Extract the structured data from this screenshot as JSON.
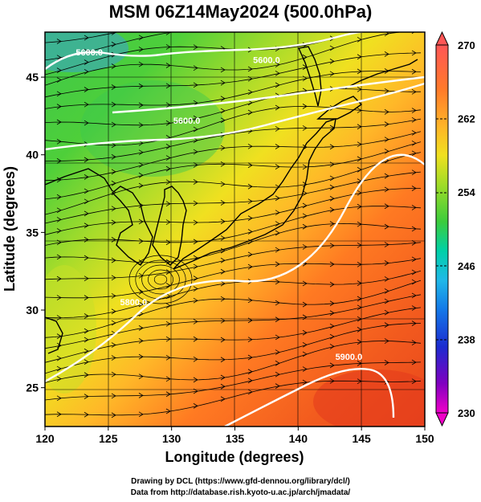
{
  "title": "MSM 06Z14May2024 (500.0hPa)",
  "map": {
    "lon_range": [
      120,
      150
    ],
    "lat_range": [
      22.5,
      47.9
    ],
    "x_ticks": [
      "120",
      "125",
      "130",
      "135",
      "140",
      "145",
      "150"
    ],
    "y_ticks": [
      "25",
      "30",
      "35",
      "40",
      "45"
    ],
    "xlabel": "Longitude (degrees)",
    "ylabel": "Latitude  (degrees)",
    "grid": true,
    "field": "temperature",
    "vectors": "wind streamlines (arrows pointing east-northeast)",
    "contour_labels": [
      {
        "text": "5600.0",
        "lon": 123.5,
        "lat": 46.4
      },
      {
        "text": "5600.0",
        "lon": 137.5,
        "lat": 45.9
      },
      {
        "text": "5600.0",
        "lon": 131.2,
        "lat": 42.0
      },
      {
        "text": "5800.0",
        "lon": 127.0,
        "lat": 30.3
      },
      {
        "text": "5900.0",
        "lon": 144.0,
        "lat": 26.8
      }
    ]
  },
  "colorbar": {
    "labels": [
      "270",
      "262",
      "254",
      "246",
      "238",
      "230"
    ],
    "min": 230,
    "max": 270,
    "colors": [
      "#ff5a5a",
      "#ff7a2a",
      "#ffa020",
      "#ffc830",
      "#e8e020",
      "#a0dc28",
      "#3ccc3c",
      "#00d0a0",
      "#20b8e0",
      "#1080e8",
      "#2030d0",
      "#8000c0",
      "#e000c0"
    ]
  },
  "credits": {
    "line1": "Drawing by DCL (https://www.gfd-dennou.org/library/dcl/)",
    "line2": "Data from http://database.rish.kyoto-u.ac.jp/arch/jmadata/"
  }
}
